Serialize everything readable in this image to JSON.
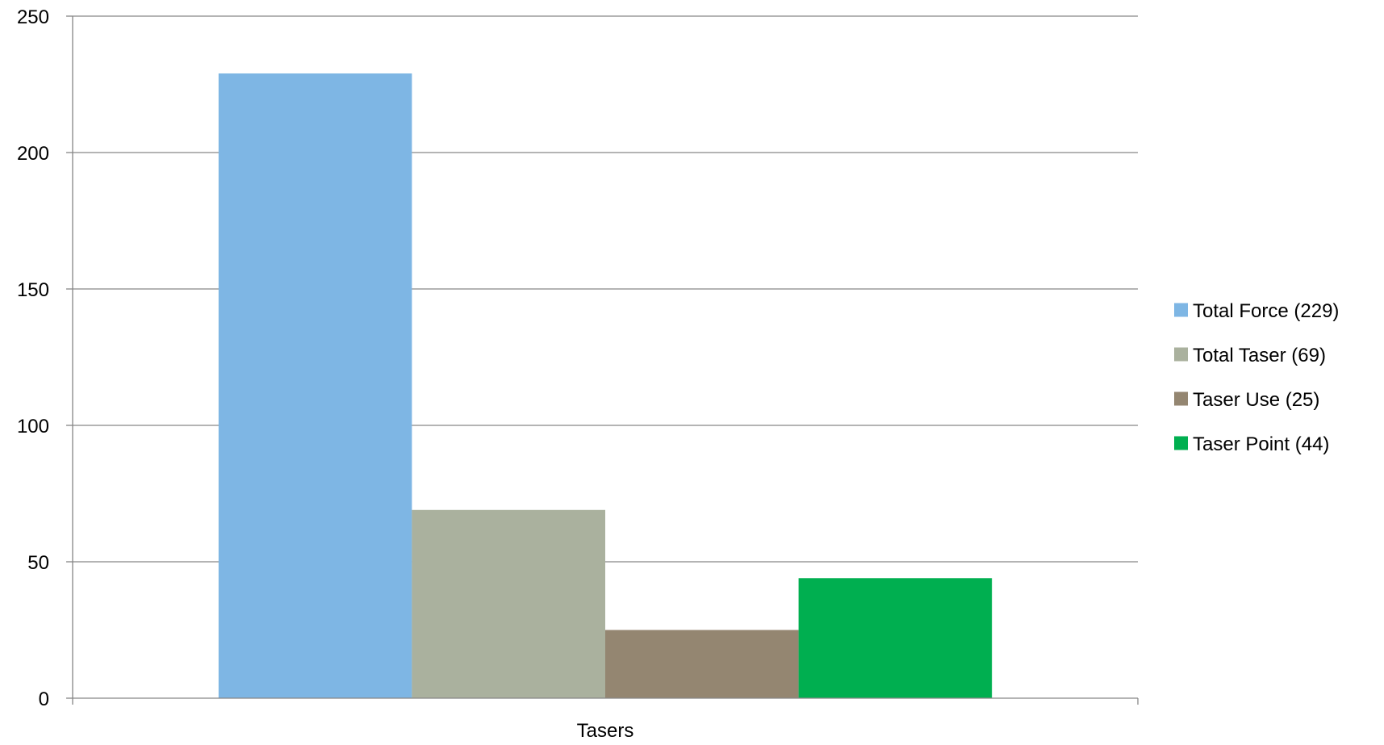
{
  "colors": {
    "background": "#ffffff",
    "gridline": "#868686",
    "axis": "#868686",
    "text": "#000000"
  },
  "chart_data": {
    "type": "bar",
    "title": "",
    "xlabel": "",
    "ylabel": "",
    "categories": [
      "Tasers"
    ],
    "ylim": [
      0,
      250
    ],
    "yticks": [
      0,
      50,
      100,
      150,
      200,
      250
    ],
    "grid": true,
    "legend_position": "right",
    "series": [
      {
        "name": "Total Force (229)",
        "values": [
          229
        ],
        "color": "#7eb6e4"
      },
      {
        "name": "Total Taser (69)",
        "values": [
          69
        ],
        "color": "#aab19e"
      },
      {
        "name": "Taser Use (25)",
        "values": [
          25
        ],
        "color": "#948671"
      },
      {
        "name": "Taser Point (44)",
        "values": [
          44
        ],
        "color": "#00af50"
      }
    ]
  }
}
